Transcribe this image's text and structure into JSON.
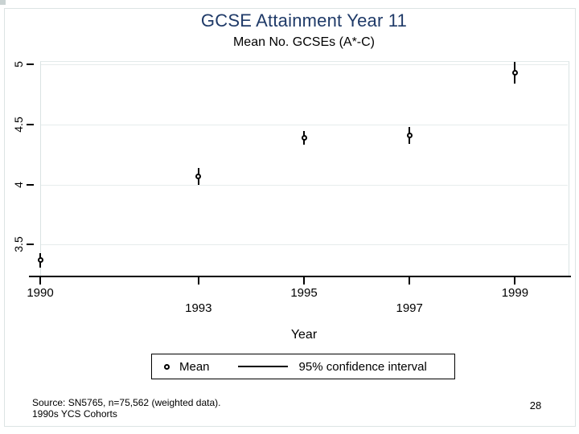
{
  "chart_data": {
    "type": "scatter",
    "title": "GCSE Attainment Year 11",
    "subtitle": "Mean No. GCSEs (A*-C)",
    "xlabel": "Year",
    "ylabel": "",
    "x": [
      1990,
      1993,
      1995,
      1997,
      1999
    ],
    "x_tick_labels": [
      "1990",
      "1993",
      "1995",
      "1997",
      "1999"
    ],
    "x_tick_label_rows": [
      1,
      2,
      1,
      2,
      1
    ],
    "y_ticks": [
      3.5,
      4,
      4.5,
      5
    ],
    "y_tick_labels": [
      "3.5",
      "4",
      "4.5",
      "5"
    ],
    "xlim": [
      1990,
      2000
    ],
    "ylim": [
      3.24,
      5.03
    ],
    "grid": true,
    "series": [
      {
        "name": "Mean",
        "points": [
          {
            "year": 1990,
            "mean": 3.37,
            "ci_low": 3.31,
            "ci_high": 3.43
          },
          {
            "year": 1993,
            "mean": 4.07,
            "ci_low": 4.0,
            "ci_high": 4.14
          },
          {
            "year": 1995,
            "mean": 4.39,
            "ci_low": 4.33,
            "ci_high": 4.45
          },
          {
            "year": 1997,
            "mean": 4.41,
            "ci_low": 4.34,
            "ci_high": 4.48
          },
          {
            "year": 1999,
            "mean": 4.93,
            "ci_low": 4.84,
            "ci_high": 5.02
          }
        ]
      }
    ],
    "legend": {
      "position": "bottom",
      "entries": [
        {
          "symbol": "circle-marker",
          "label": "Mean"
        },
        {
          "symbol": "line",
          "label": "95% confidence interval"
        }
      ]
    },
    "colors": {
      "title": "#1f3a68",
      "marker": "#000000",
      "grid": "#e6ecec",
      "background": "#ffffff"
    }
  },
  "footer": {
    "source_line1": "Source: SN5765, n=75,562 (weighted data).",
    "source_line2": "1990s YCS Cohorts",
    "page_number": "28"
  }
}
